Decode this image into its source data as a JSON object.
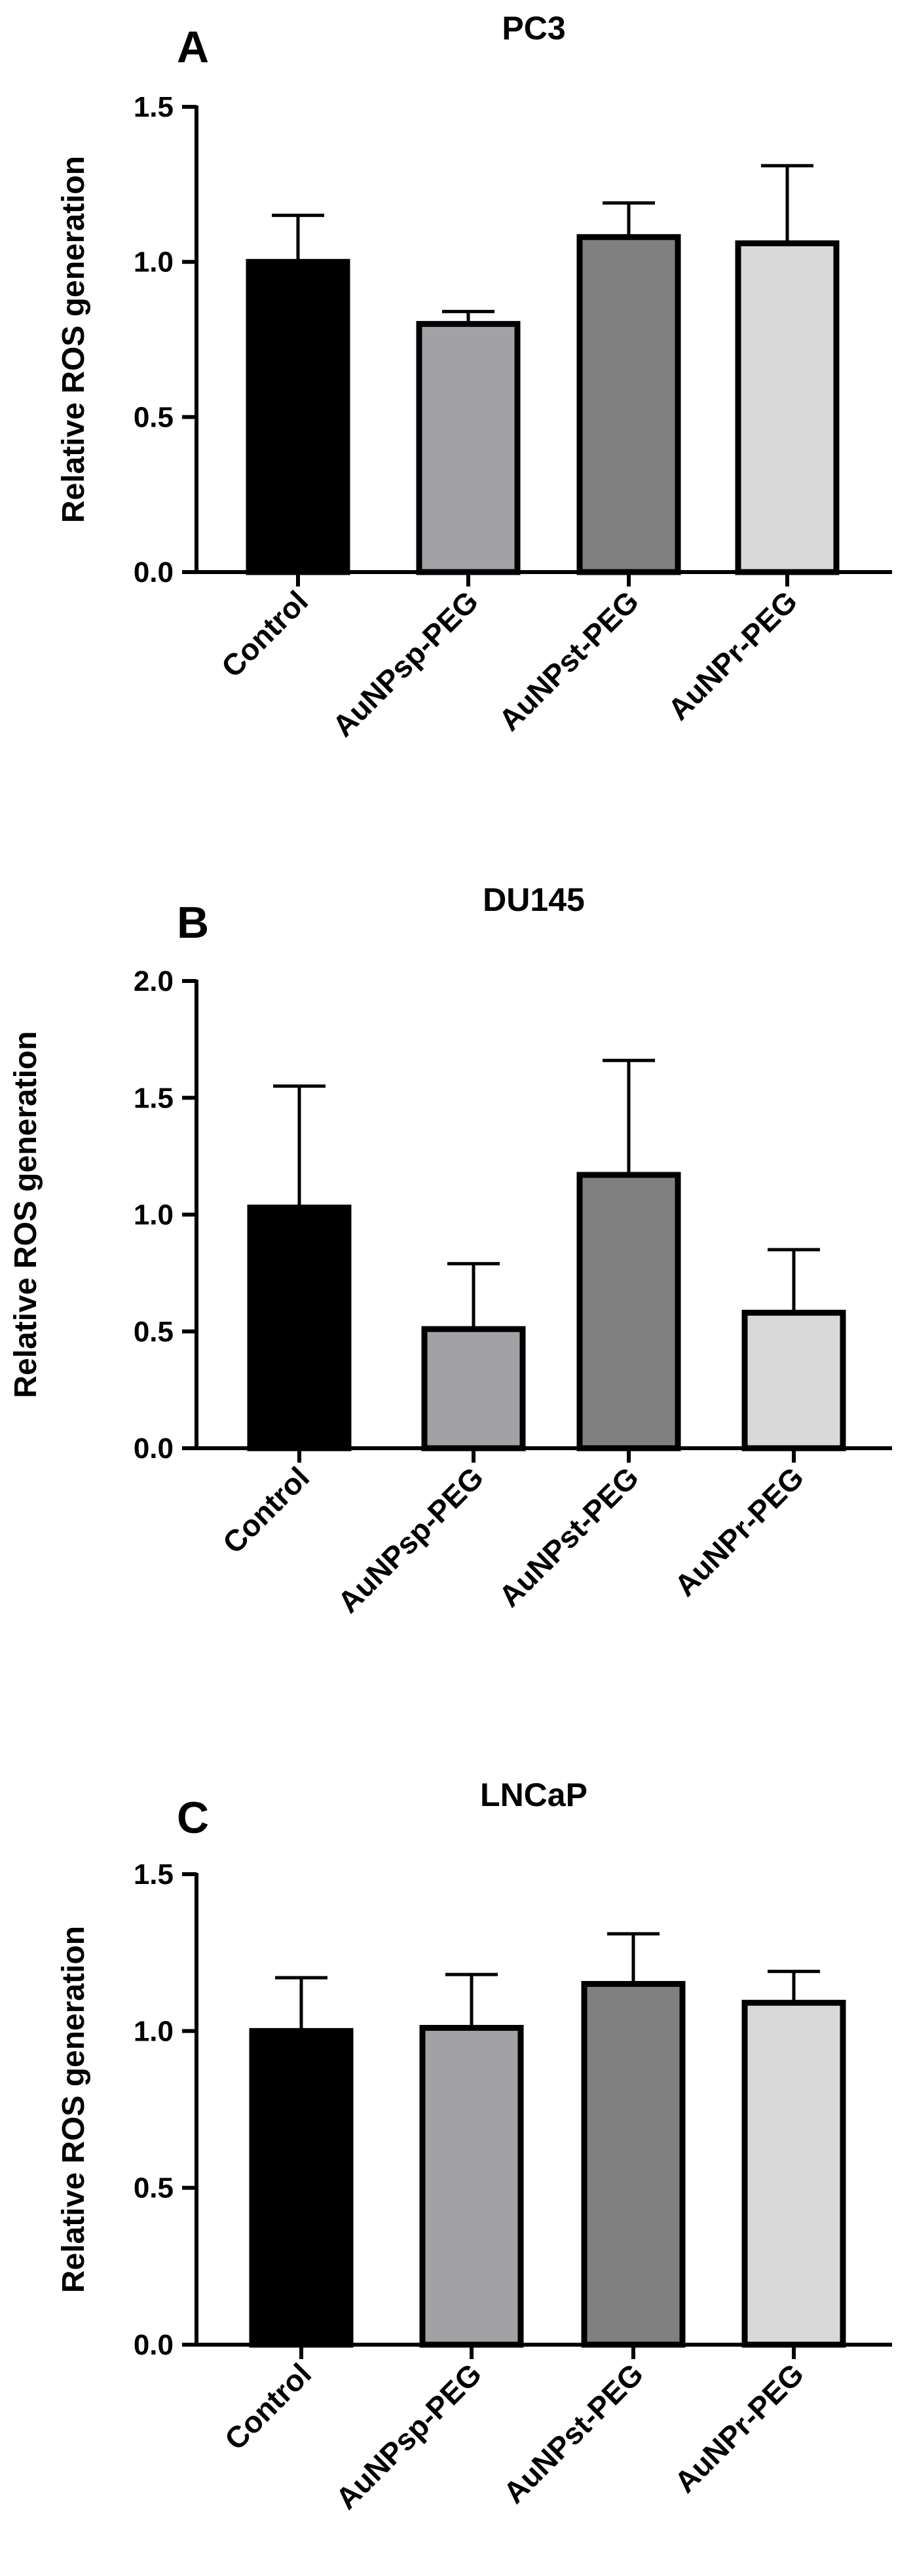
{
  "figure": {
    "panels": [
      {
        "panel_label": "A",
        "title": "PC3"
      },
      {
        "panel_label": "B",
        "title": "DU145"
      },
      {
        "panel_label": "C",
        "title": "LNCaP"
      }
    ]
  },
  "chart_data": [
    {
      "type": "bar",
      "title": "PC3",
      "panel_label": "A",
      "ylabel": "Relative ROS generation",
      "xlabel": "",
      "categories": [
        "Control",
        "AuNPsp-PEG",
        "AuNPst-PEG",
        "AuNPr-PEG"
      ],
      "values": [
        1.0,
        0.8,
        1.08,
        1.06
      ],
      "error_plus": [
        0.15,
        0.04,
        0.11,
        0.25
      ],
      "colors": [
        "#000000",
        "#a2a1a6",
        "#808080",
        "#d9d9d9"
      ],
      "ylim": [
        0,
        1.5
      ],
      "yticks": [
        "0.0",
        "0.5",
        "1.0",
        "1.5"
      ],
      "grid": false,
      "legend": "none"
    },
    {
      "type": "bar",
      "title": "DU145",
      "panel_label": "B",
      "ylabel": "Relative ROS generation",
      "xlabel": "",
      "categories": [
        "Control",
        "AuNPsp-PEG",
        "AuNPst-PEG",
        "AuNPr-PEG"
      ],
      "values": [
        1.03,
        0.51,
        1.17,
        0.58
      ],
      "error_plus": [
        0.52,
        0.28,
        0.49,
        0.27
      ],
      "colors": [
        "#000000",
        "#a2a1a6",
        "#808080",
        "#d9d9d9"
      ],
      "ylim": [
        0,
        2.0
      ],
      "yticks": [
        "0.0",
        "0.5",
        "1.0",
        "1.5",
        "2.0"
      ],
      "grid": false,
      "legend": "none"
    },
    {
      "type": "bar",
      "title": "LNCaP",
      "panel_label": "C",
      "ylabel": "Relative ROS generation",
      "xlabel": "",
      "categories": [
        "Control",
        "AuNPsp-PEG",
        "AuNPst-PEG",
        "AuNPr-PEG"
      ],
      "values": [
        1.0,
        1.01,
        1.15,
        1.09
      ],
      "error_plus": [
        0.17,
        0.17,
        0.16,
        0.1
      ],
      "colors": [
        "#000000",
        "#a2a1a6",
        "#808080",
        "#d9d9d9"
      ],
      "ylim": [
        0,
        1.5
      ],
      "yticks": [
        "0.0",
        "0.5",
        "1.0",
        "1.5"
      ],
      "grid": false,
      "legend": "none"
    }
  ]
}
